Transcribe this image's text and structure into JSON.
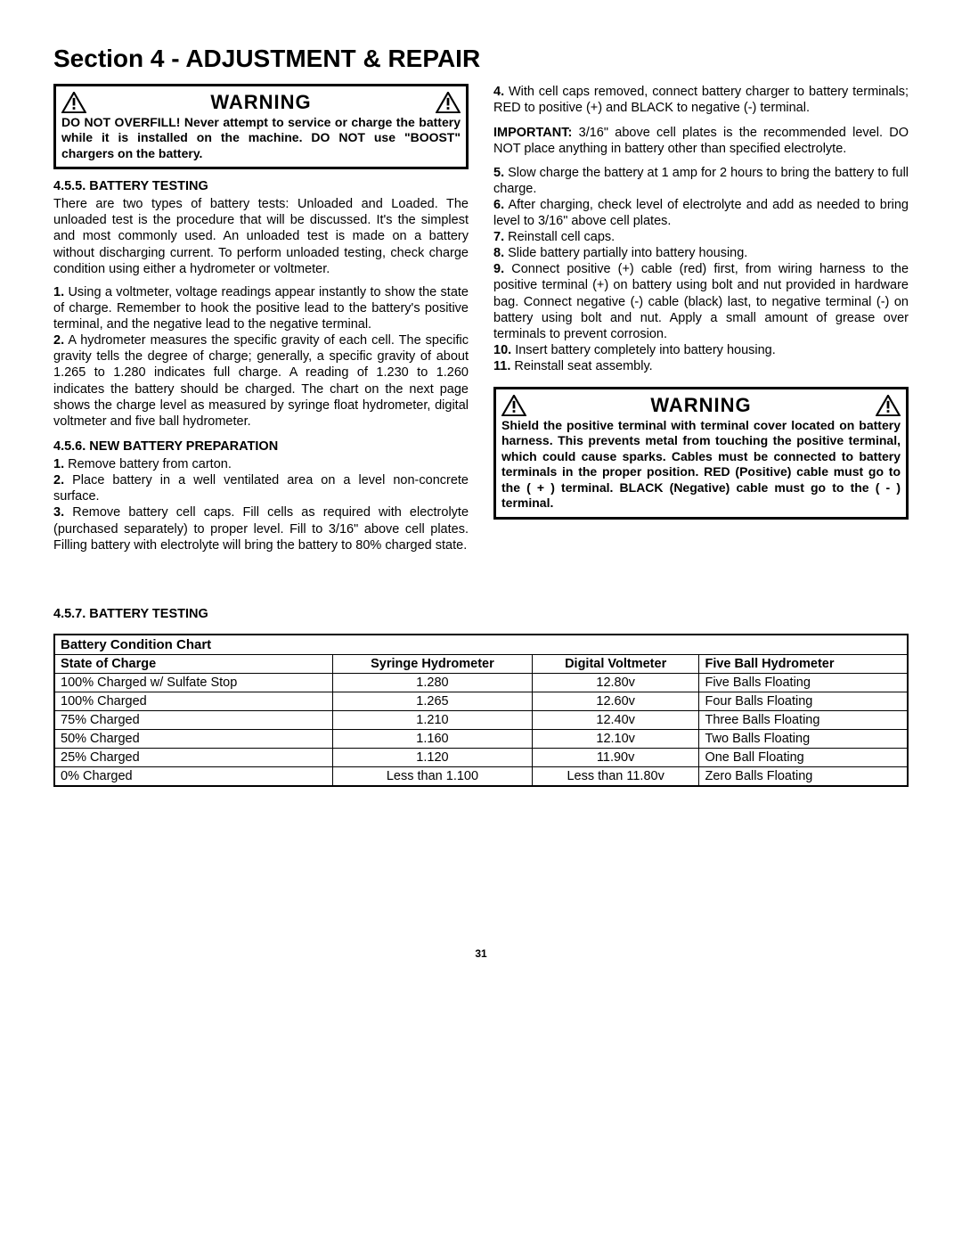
{
  "section_title": "Section 4 - ADJUSTMENT & REPAIR",
  "page_number": "31",
  "left": {
    "warning_label": "WARNING",
    "warning_text": "DO NOT OVERFILL! Never attempt to service or charge the battery while it is installed on the machine. DO NOT use \"BOOST\" chargers on the battery.",
    "h455": "4.5.5.  BATTERY TESTING",
    "p455": "There are two types of battery tests: Unloaded and Loaded. The unloaded test is the procedure that will be discussed. It's the simplest and most commonly used. An unloaded test is made on a battery without discharging current. To perform unloaded testing, check charge condition using either a hydrometer or voltmeter.",
    "n1": "1.",
    "t1": "Using a voltmeter, voltage readings appear instantly to show the state of charge. Remember to hook the positive lead to the battery's positive terminal, and the negative lead to the negative terminal.",
    "n2": "2.",
    "t2": "A hydrometer measures the specific gravity of each cell. The specific gravity tells the degree of charge; generally, a specific gravity of about 1.265 to 1.280 indicates full charge. A reading of 1.230 to 1.260 indicates the battery should be charged. The chart on the next page shows the charge level as measured by syringe float hydrometer, digital voltmeter and five ball hydrometer.",
    "h456": "4.5.6.  NEW BATTERY PREPARATION",
    "np1": "1.",
    "tp1": "Remove battery from carton.",
    "np2": "2.",
    "tp2": "Place battery in a well ventilated area on a level non-concrete surface.",
    "np3": "3.",
    "tp3": "Remove battery cell caps. Fill cells as required with electrolyte (purchased separately) to proper level. Fill to 3/16\" above cell plates. Filling battery with electrolyte will bring the battery to 80% charged state."
  },
  "right": {
    "np4": "4.",
    "tp4": "With cell caps removed, connect battery charger to battery terminals; RED to positive (+) and BLACK to negative (-) terminal.",
    "important_label": "IMPORTANT:",
    "important_text": "3/16\" above cell plates is the recommended level. DO NOT place anything in battery other than specified electrolyte.",
    "np5": "5.",
    "tp5": "Slow charge the battery at 1 amp for 2 hours to bring the battery to full charge.",
    "np6": "6.",
    "tp6": "After charging, check level of electrolyte and add as needed to bring level to 3/16\" above cell plates.",
    "np7": "7.",
    "tp7": "Reinstall cell caps.",
    "np8": "8.",
    "tp8": "Slide battery partially into battery housing.",
    "np9": "9.",
    "tp9": "Connect positive (+) cable (red) first, from wiring harness to the positive terminal (+) on battery using bolt and nut provided in hardware bag. Connect negative (-) cable (black) last, to negative terminal (-) on battery using bolt and nut. Apply a small amount of grease over terminals to prevent corrosion.",
    "np10": "10.",
    "tp10": "Insert battery completely into battery housing.",
    "np11": "11.",
    "tp11": "Reinstall seat assembly.",
    "warning_label": "WARNING",
    "warning_text": "Shield the positive terminal with terminal cover located on battery harness. This prevents metal from touching the positive terminal, which could cause sparks. Cables must be connected to battery terminals in the proper position. RED (Positive) cable must go to the ( + ) terminal. BLACK (Negative) cable must go to the ( - ) terminal."
  },
  "table": {
    "h457": "4.5.7.  BATTERY TESTING",
    "title": "Battery Condition Chart",
    "headers": [
      "State of Charge",
      "Syringe Hydrometer",
      "Digital Voltmeter",
      "Five Ball Hydrometer"
    ],
    "rows": [
      [
        "100% Charged w/ Sulfate Stop",
        "1.280",
        "12.80v",
        "Five Balls Floating"
      ],
      [
        "100% Charged",
        "1.265",
        "12.60v",
        "Four Balls Floating"
      ],
      [
        "75% Charged",
        "1.210",
        "12.40v",
        "Three Balls Floating"
      ],
      [
        "50% Charged",
        "1.160",
        "12.10v",
        "Two Balls Floating"
      ],
      [
        "25% Charged",
        "1.120",
        "11.90v",
        "One Ball Floating"
      ],
      [
        "0% Charged",
        "Less than 1.100",
        "Less than 11.80v",
        "Zero Balls Floating"
      ]
    ],
    "col_align": [
      "left",
      "center",
      "center",
      "left"
    ]
  }
}
